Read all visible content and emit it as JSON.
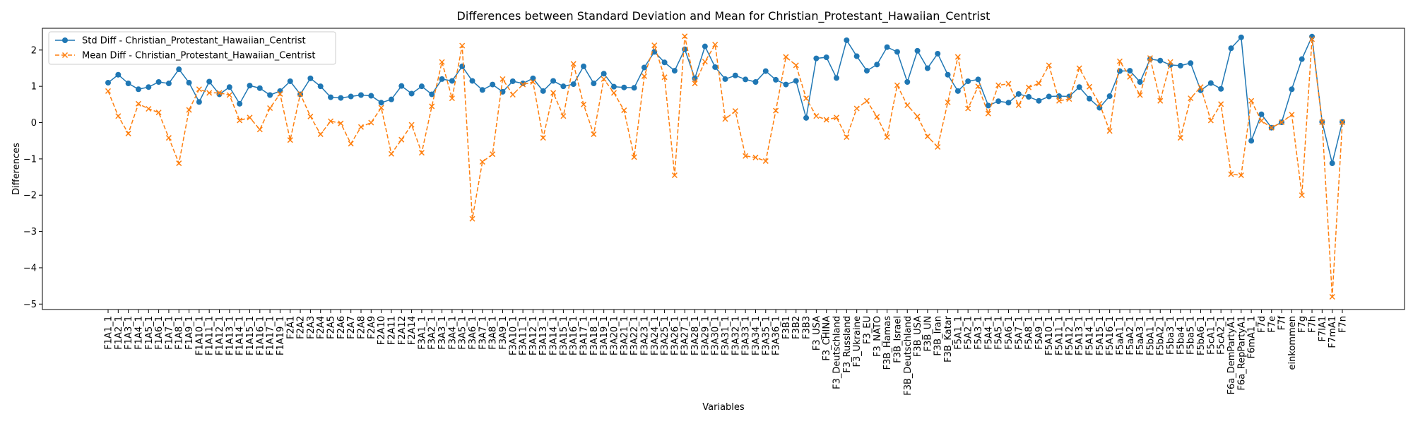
{
  "chart_data": {
    "type": "line",
    "title": "Differences between Standard Deviation and Mean for Christian_Protestant_Hawaiian_Centrist",
    "xlabel": "Variables",
    "ylabel": "Differences",
    "ylim": [
      -5.15,
      2.6
    ],
    "yticks": [
      -5,
      -4,
      -3,
      -2,
      -1,
      0,
      1,
      2
    ],
    "grid": false,
    "legend_position": "top-left",
    "categories": [
      "F1A1_1",
      "F1A2_1",
      "F1A3_1",
      "F1A4_1",
      "F1A5_1",
      "F1A6_1",
      "F1A7_1",
      "F1A8_1",
      "F1A9_1",
      "F1A10_1",
      "F1A11_1",
      "F1A12_1",
      "F1A13_1",
      "F1A14_1",
      "F1A15_1",
      "F1A16_1",
      "F1A17_1",
      "F1A19_1",
      "F2A1",
      "F2A2",
      "F2A3",
      "F2A4",
      "F2A5",
      "F2A6",
      "F2A7",
      "F2A8",
      "F2A9",
      "F2A10",
      "F2A11",
      "F2A12",
      "F2A14",
      "F3A1_1",
      "F3A2_1",
      "F3A3_1",
      "F3A4_1",
      "F3A5_1",
      "F3A6_1",
      "F3A7_1",
      "F3A8_1",
      "F3A9_1",
      "F3A10_1",
      "F3A11_1",
      "F3A12_1",
      "F3A13_1",
      "F3A14_1",
      "F3A15_1",
      "F3A16_1",
      "F3A17_1",
      "F3A18_1",
      "F3A19_1",
      "F3A20_1",
      "F3A21_1",
      "F3A22_1",
      "F3A23_1",
      "F3A24_1",
      "F3A25_1",
      "F3A26_1",
      "F3A27_1",
      "F3A28_1",
      "F3A29_1",
      "F3A30_1",
      "F3A31_1",
      "F3A32_1",
      "F3A33_1",
      "F3A34_1",
      "F3A35_1",
      "F3A36_1",
      "F3B1",
      "F3B2",
      "F3B3",
      "F3_USA",
      "F3_CHINA",
      "F3_Deutschland",
      "F3_Russland",
      "F3_Ukraine",
      "F3_EU",
      "F3_NATO",
      "F3B_Hamas",
      "F3B_Israel",
      "F3B_Deutschland",
      "F3B_USA",
      "F3B_UN",
      "F3B_Iran",
      "F3B_Katar",
      "F5A1_1",
      "F5A2_1",
      "F5A3_1",
      "F5A4_1",
      "F5A5_1",
      "F5A6_1",
      "F5A7_1",
      "F5A8_1",
      "F5A9_1",
      "F5A10_1",
      "F5A11_1",
      "F5A12_1",
      "F5A13_1",
      "F5A14_1",
      "F5A15_1",
      "F5A16_1",
      "F5aA1_1",
      "F5aA2_1",
      "F5aA3_1",
      "F5bA1_1",
      "F5bA2_1",
      "F5ba3_1",
      "F5ba4_1",
      "F5ba5_1",
      "F5bA6_1",
      "F5cA1_1",
      "F5cA2_1",
      "F6a_DemPartyA1",
      "F6a_RepPartyA1",
      "F6mA1_1",
      "F7d",
      "F7e",
      "F7f",
      "einkommen",
      "F7g",
      "F7h",
      "F7lA1",
      "F7mA1",
      "F7n"
    ],
    "series": [
      {
        "name": "Std Diff - Christian_Protestant_Hawaiian_Centrist",
        "color": "#1f77b4",
        "marker": "circle",
        "linestyle": "solid",
        "values": [
          1.1,
          1.32,
          1.08,
          0.92,
          0.98,
          1.12,
          1.08,
          1.47,
          1.1,
          0.57,
          1.13,
          0.78,
          0.98,
          0.52,
          1.02,
          0.95,
          0.76,
          0.87,
          1.14,
          0.78,
          1.22,
          1.0,
          0.7,
          0.68,
          0.72,
          0.76,
          0.74,
          0.55,
          0.64,
          1.01,
          0.8,
          1.0,
          0.78,
          1.2,
          1.15,
          1.55,
          1.15,
          0.9,
          1.05,
          0.85,
          1.14,
          1.08,
          1.22,
          0.87,
          1.15,
          1.0,
          1.06,
          1.55,
          1.08,
          1.35,
          0.99,
          0.97,
          0.96,
          1.52,
          1.95,
          1.66,
          1.43,
          2.02,
          1.22,
          2.1,
          1.53,
          1.2,
          1.3,
          1.19,
          1.12,
          1.42,
          1.18,
          1.05,
          1.15,
          0.13,
          1.77,
          1.8,
          1.23,
          2.27,
          1.83,
          1.43,
          1.6,
          2.08,
          1.95,
          1.12,
          1.98,
          1.5,
          1.9,
          1.32,
          0.87,
          1.14,
          1.19,
          0.47,
          0.59,
          0.55,
          0.79,
          0.71,
          0.6,
          0.72,
          0.73,
          0.72,
          0.98,
          0.66,
          0.41,
          0.73,
          1.42,
          1.43,
          1.12,
          1.75,
          1.71,
          1.59,
          1.57,
          1.64,
          0.89,
          1.09,
          0.93,
          2.05,
          2.35,
          -0.5,
          0.23,
          -0.14,
          0.01,
          0.92,
          1.75,
          2.37,
          0.02,
          -1.12,
          0.02
        ]
      },
      {
        "name": "Mean Diff - Christian_Protestant_Hawaiian_Centrist",
        "color": "#ff7f0e",
        "marker": "x",
        "linestyle": "dashed",
        "values": [
          0.87,
          0.18,
          -0.3,
          0.52,
          0.38,
          0.28,
          -0.42,
          -1.12,
          0.35,
          0.92,
          0.82,
          0.82,
          0.76,
          0.06,
          0.14,
          -0.19,
          0.4,
          0.79,
          -0.48,
          0.79,
          0.17,
          -0.32,
          0.04,
          -0.02,
          -0.58,
          -0.12,
          0.0,
          0.41,
          -0.86,
          -0.47,
          -0.06,
          -0.83,
          0.45,
          1.67,
          0.67,
          2.12,
          -2.65,
          -1.08,
          -0.87,
          1.2,
          0.77,
          1.05,
          1.12,
          -0.42,
          0.82,
          0.18,
          1.62,
          0.5,
          -0.32,
          1.2,
          0.82,
          0.34,
          -0.95,
          1.28,
          2.13,
          1.25,
          -1.45,
          2.38,
          1.08,
          1.68,
          2.15,
          0.1,
          0.32,
          -0.92,
          -0.96,
          -1.06,
          0.33,
          1.81,
          1.58,
          0.67,
          0.18,
          0.08,
          0.14,
          -0.4,
          0.39,
          0.6,
          0.16,
          -0.4,
          1.03,
          0.48,
          0.17,
          -0.38,
          -0.67,
          0.56,
          1.81,
          0.39,
          1.0,
          0.25,
          1.03,
          1.07,
          0.48,
          0.97,
          1.08,
          1.58,
          0.6,
          0.65,
          1.5,
          0.99,
          0.52,
          -0.23,
          1.69,
          1.26,
          0.76,
          1.78,
          0.6,
          1.67,
          -0.42,
          0.67,
          0.98,
          0.06,
          0.51,
          -1.42,
          -1.45,
          0.6,
          0.05,
          -0.14,
          0.01,
          0.22,
          -2.0,
          2.3,
          0.01,
          -4.8,
          0.01
        ]
      }
    ]
  }
}
